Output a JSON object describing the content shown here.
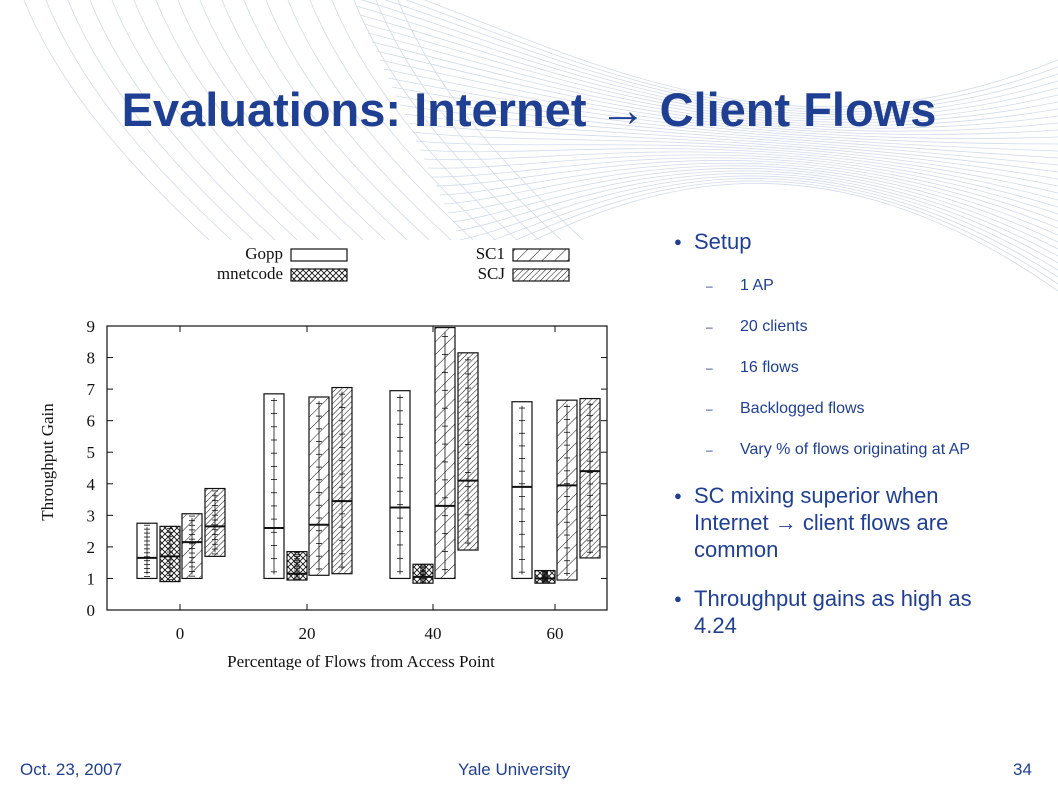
{
  "slide": {
    "title": "Evaluations: Internet → Client Flows",
    "footer_left": "Oct. 23, 2007",
    "footer_center": "Yale University",
    "footer_right": "34",
    "accent_color": "#1f3f93"
  },
  "bullets": [
    {
      "text": "Setup",
      "sub": [
        "1 AP",
        "20 clients",
        "16 flows",
        "Backlogged flows",
        "Vary % of flows originating at AP"
      ]
    },
    {
      "text": "SC mixing superior when Internet → client flows are common",
      "sub": []
    },
    {
      "text": "Throughput gains as high as 4.24",
      "sub": []
    }
  ],
  "chart_data": {
    "type": "box",
    "xlabel": "Percentage of Flows from Access Point",
    "ylabel": "Throughput Gain",
    "categories": [
      "0",
      "20",
      "40",
      "60"
    ],
    "ylim": [
      0,
      9
    ],
    "yticks": [
      "0",
      "1",
      "2",
      "3",
      "4",
      "5",
      "6",
      "7",
      "8",
      "9"
    ],
    "legend_position": "top",
    "series": [
      {
        "name": "Gopp",
        "pattern": "none",
        "boxes": [
          {
            "low": 1.0,
            "median": 1.65,
            "high": 2.75
          },
          {
            "low": 1.0,
            "median": 2.6,
            "high": 6.85
          },
          {
            "low": 1.0,
            "median": 3.25,
            "high": 6.95
          },
          {
            "low": 1.0,
            "median": 3.9,
            "high": 6.6
          }
        ]
      },
      {
        "name": "mnetcode",
        "pattern": "crosshatch",
        "boxes": [
          {
            "low": 0.9,
            "median": 1.7,
            "high": 2.65
          },
          {
            "low": 0.95,
            "median": 1.15,
            "high": 1.85
          },
          {
            "low": 0.85,
            "median": 1.05,
            "high": 1.45
          },
          {
            "low": 0.85,
            "median": 1.0,
            "high": 1.25
          }
        ]
      },
      {
        "name": "SC1",
        "pattern": "diagonal",
        "boxes": [
          {
            "low": 1.0,
            "median": 2.15,
            "high": 3.05
          },
          {
            "low": 1.1,
            "median": 2.7,
            "high": 6.75
          },
          {
            "low": 1.0,
            "median": 3.3,
            "high": 8.95
          },
          {
            "low": 0.95,
            "median": 3.95,
            "high": 6.65
          }
        ]
      },
      {
        "name": "SCJ",
        "pattern": "dense-diagonal",
        "boxes": [
          {
            "low": 1.7,
            "median": 2.65,
            "high": 3.85
          },
          {
            "low": 1.15,
            "median": 3.45,
            "high": 7.05
          },
          {
            "low": 1.9,
            "median": 4.1,
            "high": 8.15
          },
          {
            "low": 1.65,
            "median": 4.4,
            "high": 6.7
          }
        ]
      }
    ]
  }
}
